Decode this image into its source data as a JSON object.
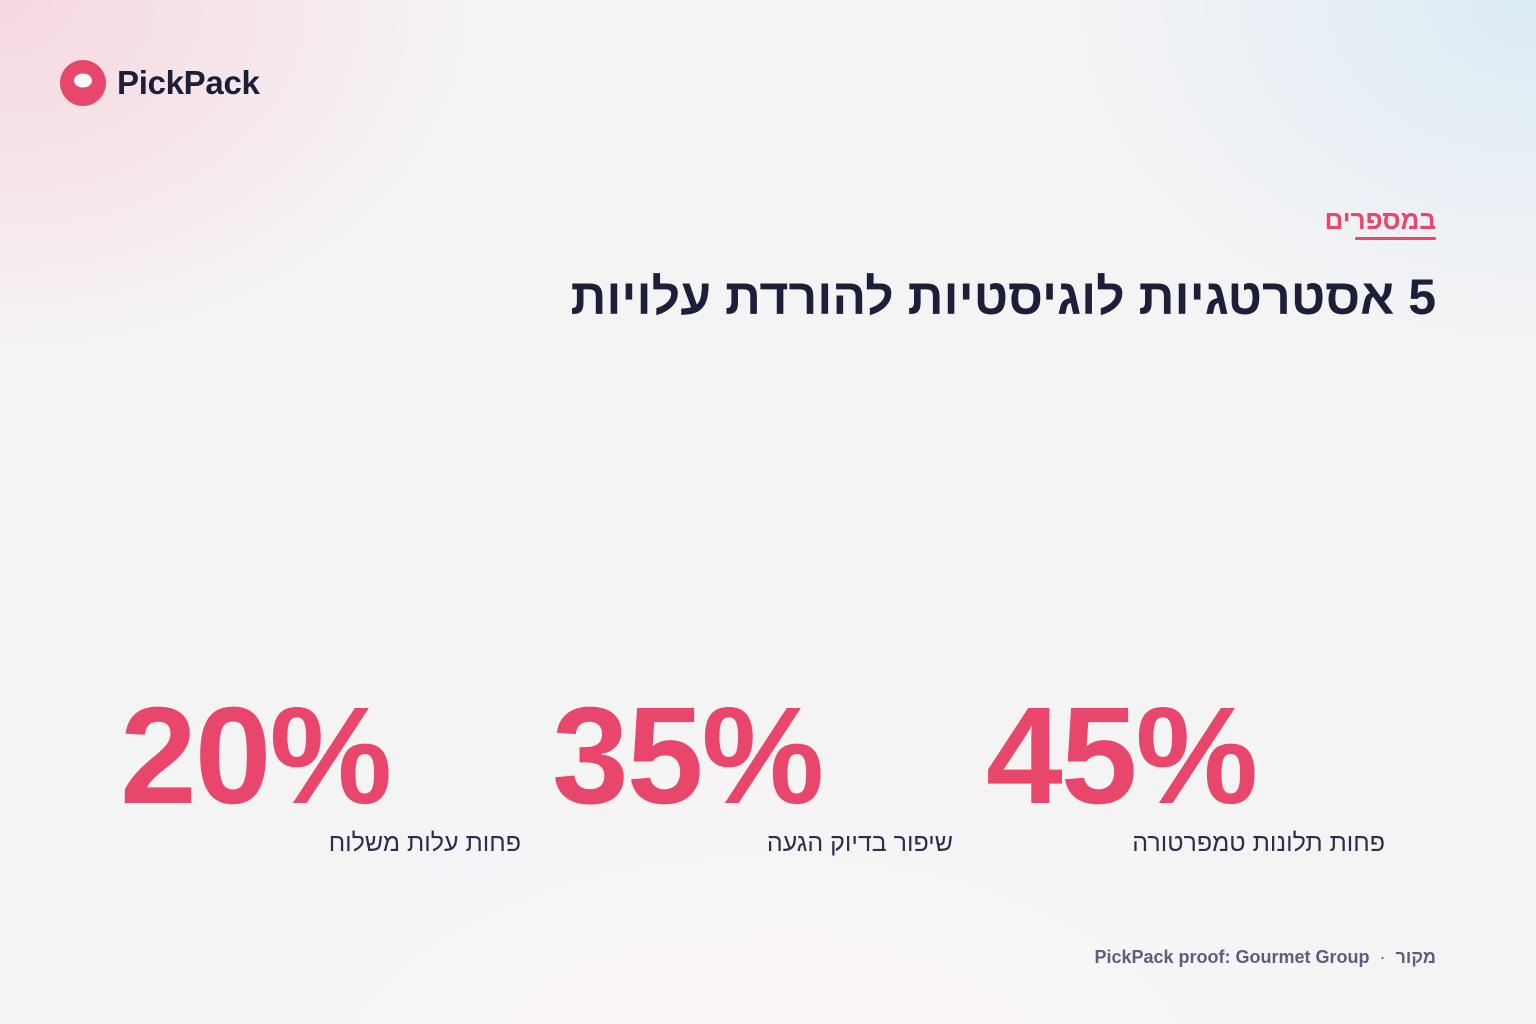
{
  "brand": {
    "name": "PickPack",
    "logo_icon": "pickpack-logo-icon",
    "color": "#e8476b"
  },
  "section": {
    "eyebrow": "במספרים",
    "headline": "5 אסטרטגיות לוגיסטיות להורדת עלויות"
  },
  "stats": [
    {
      "value": "45%",
      "label": "פחות תלונות טמפרטורה"
    },
    {
      "value": "35%",
      "label": "שיפור בדיוק הגעה"
    },
    {
      "value": "20%",
      "label": "פחות עלות משלוח"
    }
  ],
  "footer": {
    "source_label": "מקור",
    "separator": "·",
    "source_text": "PickPack proof: Gourmet Group"
  },
  "colors": {
    "accent": "#e8476b",
    "ink": "#1c1f3a",
    "muted": "#5a5f7e"
  }
}
